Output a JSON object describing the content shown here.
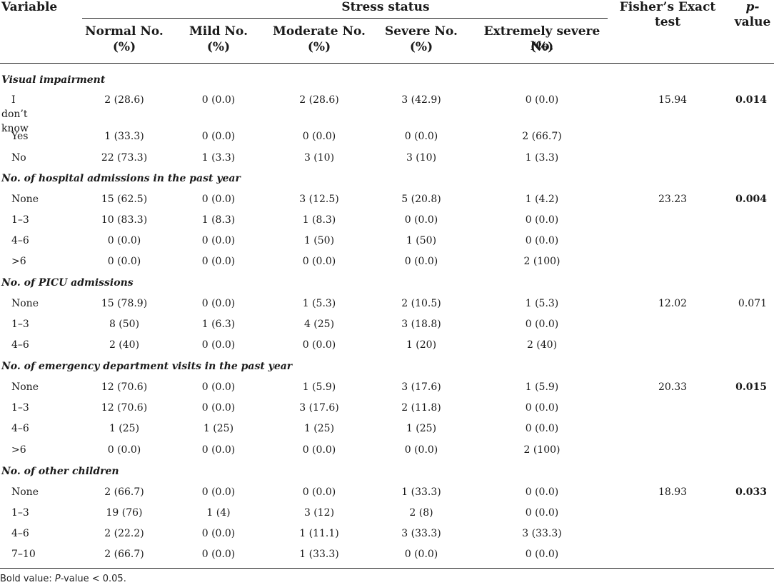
{
  "header": {
    "variable": "Variable",
    "stress_status": "Stress status",
    "columns": [
      {
        "line1": "Normal No.",
        "line2": "(%)"
      },
      {
        "line1": "Mild No.",
        "line2": "(%)"
      },
      {
        "line1": "Moderate No.",
        "line2": "(%)"
      },
      {
        "line1": "Severe No.",
        "line2": "(%)"
      },
      {
        "line1": "Extremely severe No.",
        "line2": "(%)"
      }
    ],
    "fisher_line1": "Fisher’s Exact",
    "fisher_line2": "test",
    "p_line1": "p-",
    "p_line2": "value"
  },
  "sections": [
    {
      "title": "Visual impairment",
      "fisher": "15.94",
      "p": "0.014",
      "p_bold": true,
      "rows": [
        {
          "label": "I don’t know",
          "cells": [
            "2 (28.6)",
            "0 (0.0)",
            "2 (28.6)",
            "3 (42.9)",
            "0 (0.0)"
          ]
        },
        {
          "label": "Yes",
          "cells": [
            "1 (33.3)",
            "0 (0.0)",
            "0 (0.0)",
            "0 (0.0)",
            "2 (66.7)"
          ]
        },
        {
          "label": "No",
          "cells": [
            "22 (73.3)",
            "1 (3.3)",
            "3 (10)",
            "3 (10)",
            "1 (3.3)"
          ]
        }
      ]
    },
    {
      "title": "No. of hospital admissions in the past year",
      "fisher": "23.23",
      "p": "0.004",
      "p_bold": true,
      "rows": [
        {
          "label": "None",
          "cells": [
            "15 (62.5)",
            "0 (0.0)",
            "3 (12.5)",
            "5 (20.8)",
            "1 (4.2)"
          ]
        },
        {
          "label": "1–3",
          "cells": [
            "10 (83.3)",
            "1 (8.3)",
            "1 (8.3)",
            "0 (0.0)",
            "0 (0.0)"
          ]
        },
        {
          "label": "4–6",
          "cells": [
            "0 (0.0)",
            "0 (0.0)",
            "1 (50)",
            "1 (50)",
            "0 (0.0)"
          ]
        },
        {
          "label": ">6",
          "cells": [
            "0 (0.0)",
            "0 (0.0)",
            "0 (0.0)",
            "0 (0.0)",
            "2 (100)"
          ]
        }
      ]
    },
    {
      "title": "No. of PICU admissions",
      "fisher": "12.02",
      "p": "0.071",
      "p_bold": false,
      "rows": [
        {
          "label": "None",
          "cells": [
            "15 (78.9)",
            "0 (0.0)",
            "1 (5.3)",
            "2 (10.5)",
            "1 (5.3)"
          ]
        },
        {
          "label": "1–3",
          "cells": [
            "8 (50)",
            "1 (6.3)",
            "4 (25)",
            "3 (18.8)",
            "0 (0.0)"
          ]
        },
        {
          "label": "4–6",
          "cells": [
            "2 (40)",
            "0 (0.0)",
            "0 (0.0)",
            "1 (20)",
            "2 (40)"
          ]
        }
      ]
    },
    {
      "title": "No. of emergency department visits in the past year",
      "fisher": "20.33",
      "p": "0.015",
      "p_bold": true,
      "rows": [
        {
          "label": "None",
          "cells": [
            "12 (70.6)",
            "0 (0.0)",
            "1 (5.9)",
            "3 (17.6)",
            "1 (5.9)"
          ]
        },
        {
          "label": "1–3",
          "cells": [
            "12 (70.6)",
            "0 (0.0)",
            "3 (17.6)",
            "2 (11.8)",
            "0 (0.0)"
          ]
        },
        {
          "label": "4–6",
          "cells": [
            "1 (25)",
            "1 (25)",
            "1 (25)",
            "1 (25)",
            "0 (0.0)"
          ]
        },
        {
          "label": ">6",
          "cells": [
            "0 (0.0)",
            "0 (0.0)",
            "0 (0.0)",
            "0 (0.0)",
            "2 (100)"
          ]
        }
      ]
    },
    {
      "title": "No. of other children",
      "fisher": "18.93",
      "p": "0.033",
      "p_bold": true,
      "rows": [
        {
          "label": "None",
          "cells": [
            "2 (66.7)",
            "0 (0.0)",
            "0 (0.0)",
            "1 (33.3)",
            "0 (0.0)"
          ]
        },
        {
          "label": "1–3",
          "cells": [
            "19 (76)",
            "1 (4)",
            "3 (12)",
            "2 (8)",
            "0 (0.0)"
          ]
        },
        {
          "label": "4–6",
          "cells": [
            "2 (22.2)",
            "0 (0.0)",
            "1 (11.1)",
            "3 (33.3)",
            "3 (33.3)"
          ]
        },
        {
          "label": "7–10",
          "cells": [
            "2 (66.7)",
            "0 (0.0)",
            "1 (33.3)",
            "0 (0.0)",
            "0 (0.0)"
          ]
        }
      ]
    }
  ],
  "footnote": {
    "prefix": "Bold value: ",
    "p_symbol": "P",
    "suffix": "-value < 0.05."
  }
}
